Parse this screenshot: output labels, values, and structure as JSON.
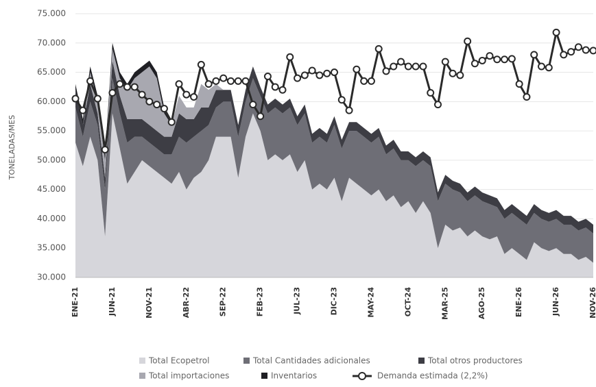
{
  "chart_data": {
    "type": "area",
    "ylabel": "TONELADAS/MES",
    "categories": [
      "ENE-21",
      null,
      null,
      null,
      null,
      "JUN-21",
      null,
      null,
      null,
      null,
      "NOV-21",
      null,
      null,
      null,
      null,
      "ABR-22",
      null,
      null,
      null,
      null,
      "SEP-22",
      null,
      null,
      null,
      null,
      "FEB-23",
      null,
      null,
      null,
      null,
      "JUL-23",
      null,
      null,
      null,
      null,
      "DIC-23",
      null,
      null,
      null,
      null,
      "MAY-24",
      null,
      null,
      null,
      null,
      "OCT-24",
      null,
      null,
      null,
      null,
      "MAR-25",
      null,
      null,
      null,
      null,
      "AGO-25",
      null,
      null,
      null,
      null,
      "ENE-26",
      null,
      null,
      null,
      null,
      "JUN-26",
      null,
      null,
      null,
      null,
      "NOV-26"
    ],
    "ylim": [
      30000,
      75000
    ],
    "yticks": [
      {
        "value": 30000,
        "label": "30.000"
      },
      {
        "value": 35000,
        "label": "35.000"
      },
      {
        "value": 40000,
        "label": "40.000"
      },
      {
        "value": 45000,
        "label": "45.000"
      },
      {
        "value": 50000,
        "label": "50.000"
      },
      {
        "value": 55000,
        "label": "55.000"
      },
      {
        "value": 60000,
        "label": "60.000"
      },
      {
        "value": 65000,
        "label": "65.000"
      },
      {
        "value": 70000,
        "label": "70.000"
      },
      {
        "value": 75000,
        "label": "75.000"
      }
    ],
    "grid": true,
    "series": [
      {
        "name": "Total Ecopetrol",
        "color": "#d6d6db",
        "type": "area",
        "values": [
          53000,
          49000,
          54000,
          50000,
          37000,
          58000,
          52000,
          46000,
          48000,
          50000,
          49000,
          48000,
          47000,
          46000,
          48000,
          45000,
          47000,
          48000,
          50000,
          54000,
          54000,
          54000,
          47000,
          54000,
          58000,
          55000,
          50000,
          51000,
          50000,
          51000,
          48000,
          50000,
          45000,
          46000,
          45000,
          47000,
          43000,
          47000,
          46000,
          45000,
          44000,
          45000,
          43000,
          44000,
          42000,
          43000,
          41000,
          43000,
          41000,
          35000,
          39000,
          38000,
          38500,
          37000,
          38000,
          37000,
          36500,
          37000,
          34000,
          35000,
          34000,
          33000,
          36000,
          35000,
          34500,
          35000,
          34000,
          34000,
          33000,
          33500,
          32500
        ]
      },
      {
        "name": "Total Cantidades adicionales",
        "color": "#6e6e76",
        "type": "area",
        "values": [
          6000,
          5000,
          6000,
          6000,
          8000,
          6000,
          6000,
          7000,
          6000,
          4000,
          4000,
          4000,
          4000,
          5000,
          6000,
          8000,
          7000,
          7000,
          6000,
          5000,
          6000,
          6000,
          7000,
          6000,
          6000,
          6000,
          8000,
          8000,
          8000,
          8000,
          8000,
          8000,
          8000,
          8000,
          8000,
          9000,
          9000,
          8000,
          9000,
          9000,
          9000,
          9000,
          8000,
          8000,
          8000,
          7000,
          8000,
          7000,
          8000,
          8000,
          7000,
          7000,
          6000,
          6000,
          6000,
          6000,
          6000,
          5000,
          6000,
          6000,
          6000,
          6000,
          5000,
          5000,
          5000,
          5000,
          5000,
          5000,
          5000,
          5000,
          5000
        ]
      },
      {
        "name": "Total otros productores",
        "color": "#3d3d44",
        "type": "area",
        "values": [
          3000,
          2000,
          3000,
          2000,
          2000,
          3000,
          3000,
          4000,
          3000,
          3000,
          3000,
          3000,
          3000,
          3000,
          4000,
          4000,
          3000,
          4000,
          3000,
          3000,
          2000,
          2000,
          2000,
          2000,
          2000,
          1500,
          1500,
          1500,
          1500,
          1500,
          1500,
          1500,
          1500,
          1500,
          1500,
          1500,
          1500,
          1500,
          1500,
          1500,
          1500,
          1500,
          1500,
          1500,
          1500,
          1500,
          1500,
          1500,
          1500,
          1500,
          1500,
          1500,
          1500,
          1500,
          1500,
          1500,
          1500,
          1500,
          1500,
          1500,
          1500,
          1500,
          1500,
          1500,
          1500,
          1500,
          1500,
          1500,
          1500,
          1500,
          1500
        ]
      },
      {
        "name": "Total importaciones",
        "color": "#a8a8b0",
        "type": "area",
        "values": [
          0,
          0,
          2000,
          2000,
          3000,
          2000,
          3000,
          5000,
          7000,
          8000,
          10000,
          9000,
          4000,
          2000,
          3000,
          2000,
          2000,
          4000,
          3000,
          1000,
          0,
          0,
          0,
          0,
          0,
          0,
          0,
          0,
          0,
          0,
          0,
          0,
          0,
          0,
          0,
          0,
          0,
          0,
          0,
          0,
          0,
          0,
          0,
          0,
          0,
          0,
          0,
          0,
          0,
          0,
          0,
          0,
          0,
          0,
          0,
          0,
          0,
          0,
          0,
          0,
          0,
          0,
          0,
          0,
          0,
          0,
          0,
          0,
          0,
          0,
          0
        ]
      },
      {
        "name": "Inventarios",
        "color": "#1f1f24",
        "type": "area",
        "values": [
          1000,
          1000,
          1000,
          1000,
          1000,
          1000,
          1000,
          1000,
          1000,
          1000,
          1000,
          1000,
          1000,
          0,
          0,
          0,
          0,
          0,
          0,
          0,
          0,
          0,
          0,
          0,
          0,
          0,
          0,
          0,
          0,
          0,
          0,
          0,
          0,
          0,
          0,
          0,
          0,
          0,
          0,
          0,
          0,
          0,
          0,
          0,
          0,
          0,
          0,
          0,
          0,
          0,
          0,
          0,
          0,
          0,
          0,
          0,
          0,
          0,
          0,
          0,
          0,
          0,
          0,
          0,
          0,
          0,
          0,
          0,
          0,
          0,
          0
        ]
      },
      {
        "name": "Demanda estimada (2,2%)",
        "color": "#2a2a2a",
        "type": "line",
        "values": [
          60500,
          58500,
          63500,
          60500,
          51800,
          61500,
          63000,
          62500,
          62500,
          61200,
          60000,
          59500,
          58800,
          56500,
          63000,
          61200,
          60800,
          66300,
          63000,
          63500,
          64000,
          63500,
          63500,
          63500,
          59500,
          57500,
          64300,
          62500,
          62000,
          67600,
          64000,
          64500,
          65300,
          64500,
          64800,
          65000,
          60300,
          58500,
          65500,
          63500,
          63500,
          69000,
          65200,
          66000,
          66800,
          66000,
          66000,
          66000,
          61500,
          59500,
          66800,
          64800,
          64500,
          70300,
          66500,
          67000,
          67800,
          67200,
          67200,
          67300,
          63000,
          60800,
          68000,
          66000,
          65800,
          71800,
          68000,
          68500,
          69300,
          68800,
          68700
        ]
      }
    ]
  }
}
